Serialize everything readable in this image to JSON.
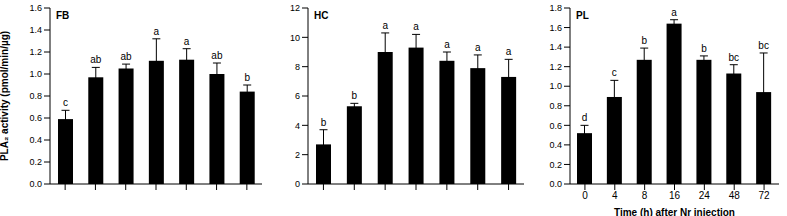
{
  "chart_data": [
    {
      "type": "bar",
      "title": "FB",
      "y_label": "PLA₂ activity (pmol/min/µg)",
      "categories": [
        null,
        null,
        null,
        null,
        null,
        null,
        null
      ],
      "values": [
        0.59,
        0.97,
        1.05,
        1.12,
        1.13,
        1.0,
        0.84
      ],
      "errors": [
        0.08,
        0.09,
        0.04,
        0.2,
        0.1,
        0.1,
        0.06
      ],
      "letters": [
        "c",
        "ab",
        "ab",
        "a",
        "a",
        "ab",
        "b"
      ],
      "color": "#000000",
      "tick_labels": "y",
      "ylim": [
        0,
        1.6
      ],
      "yticks": [
        {
          "value": 0,
          "label": "0.0"
        },
        0.2,
        0.4,
        0.6,
        0.8,
        {
          "value": 1,
          "label": "1.0"
        },
        1.2,
        1.4,
        1.6
      ]
    },
    {
      "type": "bar",
      "title": "HC",
      "categories": [
        null,
        null,
        null,
        null,
        null,
        null,
        null
      ],
      "values": [
        2.7,
        5.3,
        9.0,
        9.3,
        8.4,
        7.9,
        7.3
      ],
      "errors": [
        1.0,
        0.2,
        1.3,
        0.9,
        0.6,
        0.9,
        1.2
      ],
      "letters": [
        "b",
        "b",
        "a",
        "a",
        "a",
        "a",
        "a"
      ],
      "color": "#000000",
      "tick_labels": "y",
      "ylim": [
        0,
        12
      ],
      "yticks": [
        0,
        2,
        4,
        6,
        8,
        10,
        12
      ]
    },
    {
      "type": "bar",
      "title": "PL",
      "x_label": "Time (h) after Nr injection",
      "categories": [
        "0",
        "4",
        "8",
        "16",
        "24",
        "48",
        "72"
      ],
      "values": [
        0.52,
        0.89,
        1.27,
        1.64,
        1.27,
        1.13,
        0.94
      ],
      "errors": [
        0.08,
        0.17,
        0.12,
        0.04,
        0.04,
        0.09,
        0.4
      ],
      "letters": [
        "d",
        "c",
        "b",
        "a",
        "b",
        "bc",
        "bc"
      ],
      "color": "#000000",
      "ylim": [
        0,
        1.8
      ],
      "yticks": [
        {
          "value": 0,
          "label": "0.0"
        },
        0.2,
        0.4,
        0.6,
        0.8,
        {
          "value": 1,
          "label": "1.0"
        },
        1.2,
        1.4,
        1.6,
        1.8
      ]
    }
  ]
}
